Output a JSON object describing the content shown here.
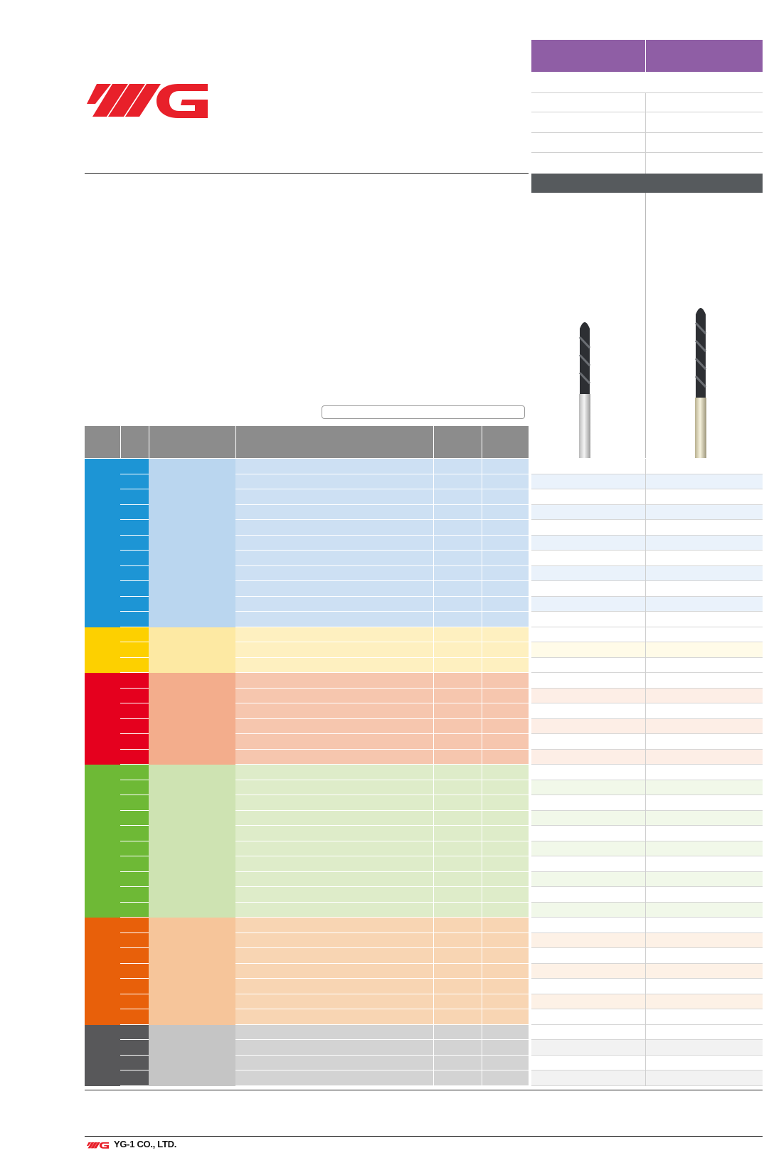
{
  "brand": {
    "logo_text": "YG",
    "footer_company": "YG-1 CO., LTD.",
    "accent_color": "#e8202a"
  },
  "header": {
    "columns": [
      "",
      ""
    ]
  },
  "search": {
    "placeholder": ""
  },
  "table": {
    "column_headers": [
      "",
      "",
      "",
      "",
      "",
      ""
    ],
    "groups": [
      {
        "id": "P",
        "color": "#1d95d5",
        "light": "#bad6ef",
        "lighter": "#cde0f3",
        "product_tint": "#eaf2fb",
        "rows": 11
      },
      {
        "id": "M",
        "color": "#fdd000",
        "light": "#fde9a3",
        "lighter": "#fef0c0",
        "product_tint": "#fffbe8",
        "rows": 3
      },
      {
        "id": "K",
        "color": "#e5001e",
        "light": "#f3ad8c",
        "lighter": "#f6c6ae",
        "product_tint": "#fdeee6",
        "rows": 6
      },
      {
        "id": "N",
        "color": "#6eb936",
        "light": "#cee3b2",
        "lighter": "#deecc9",
        "product_tint": "#f1f8e9",
        "rows": 10
      },
      {
        "id": "S",
        "color": "#e8600a",
        "light": "#f6c59a",
        "lighter": "#f8d5b3",
        "product_tint": "#fdf1e6",
        "rows": 7
      },
      {
        "id": "H",
        "color": "#58585a",
        "light": "#c5c5c5",
        "lighter": "#d3d3d3",
        "product_tint": "#f2f2f2",
        "rows": 4
      }
    ]
  },
  "icons": {
    "logo": "yg-logo-icon",
    "drill_left": "drill-image-icon",
    "drill_right": "drill-image-icon"
  }
}
